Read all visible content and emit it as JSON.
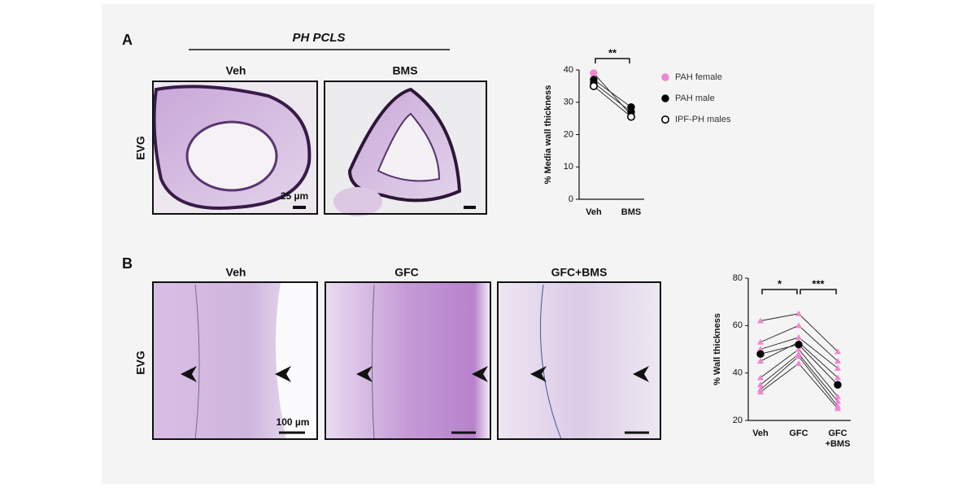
{
  "panels": {
    "a": {
      "label": "A",
      "group": "PH PCLS",
      "stain": "EVG",
      "images": [
        "Veh",
        "BMS"
      ],
      "scale": "25 µm"
    },
    "b": {
      "label": "B",
      "stain": "EVG",
      "images": [
        "Veh",
        "GFC",
        "GFC+BMS"
      ],
      "scale": "100 µm"
    }
  },
  "chart_data": [
    {
      "type": "line",
      "ylabel": "% Media wall thickness",
      "categories": [
        [
          "Veh"
        ],
        [
          "BMS"
        ]
      ],
      "ylim": [
        0,
        40
      ],
      "yticks": [
        0,
        10,
        20,
        30,
        40
      ],
      "significance": [
        "**"
      ],
      "legend": "right",
      "series": [
        {
          "name": "PAH female",
          "color": "#ef86cf",
          "marker": "circle",
          "values": [
            [
              39,
              26
            ]
          ]
        },
        {
          "name": "PAH male",
          "color": "#000000",
          "marker": "circle",
          "values": [
            [
              37,
              28.5
            ],
            [
              36,
              27
            ]
          ]
        },
        {
          "name": "IPF-PH males",
          "color": "#000000",
          "marker": "open-circle",
          "values": [
            [
              35,
              25.5
            ]
          ]
        }
      ]
    },
    {
      "type": "line",
      "ylabel": "% Wall thickness",
      "categories": [
        [
          "Veh"
        ],
        [
          "GFC"
        ],
        [
          "GFC",
          "+BMS"
        ]
      ],
      "ylim": [
        20,
        80
      ],
      "yticks": [
        20,
        40,
        60,
        80
      ],
      "significance": [
        "*",
        "***"
      ],
      "series": [
        {
          "color": "#ef86cf",
          "marker": "triangle",
          "values": [
            [
              62,
              65,
              49
            ],
            [
              53,
              60,
              45
            ],
            [
              50,
              55,
              42
            ],
            [
              45,
              53,
              38
            ],
            [
              38,
              50,
              30
            ],
            [
              35,
              48,
              28
            ],
            [
              33,
              47,
              26
            ],
            [
              32,
              44,
              25
            ]
          ]
        },
        {
          "color": "#000000",
          "marker": "circle",
          "values": [
            [
              48,
              52,
              35
            ]
          ]
        }
      ]
    }
  ]
}
